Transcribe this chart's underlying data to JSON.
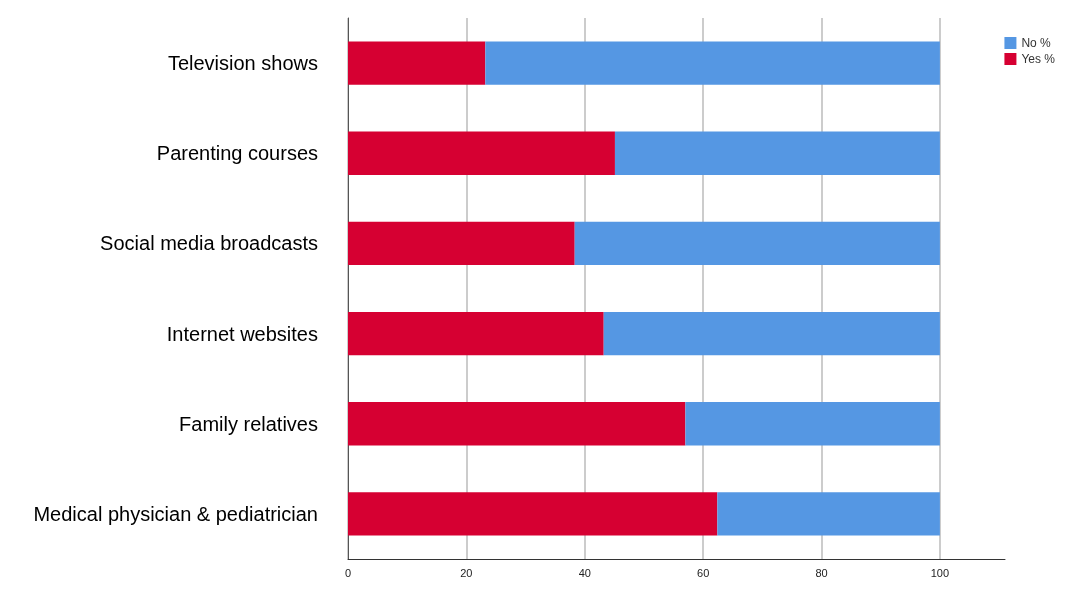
{
  "chart_data": {
    "type": "bar",
    "orientation": "horizontal",
    "stacked": true,
    "categories": [
      "Television shows",
      "Parenting courses",
      "Social media broadcasts",
      "Internet websites",
      "Family relatives",
      "Medical physician & pediatrician"
    ],
    "series": [
      {
        "name": "Yes %",
        "color": "#d60032",
        "values": [
          23.2,
          45.1,
          38.3,
          43.2,
          57.0,
          62.4
        ]
      },
      {
        "name": "No %",
        "color": "#5597e3",
        "values": [
          76.8,
          54.9,
          61.7,
          56.8,
          43.0,
          37.6
        ]
      }
    ],
    "xlim": [
      0,
      111
    ],
    "xticks": [
      0,
      20,
      40,
      60,
      80,
      100
    ],
    "grid": "x",
    "legend": "top right"
  }
}
